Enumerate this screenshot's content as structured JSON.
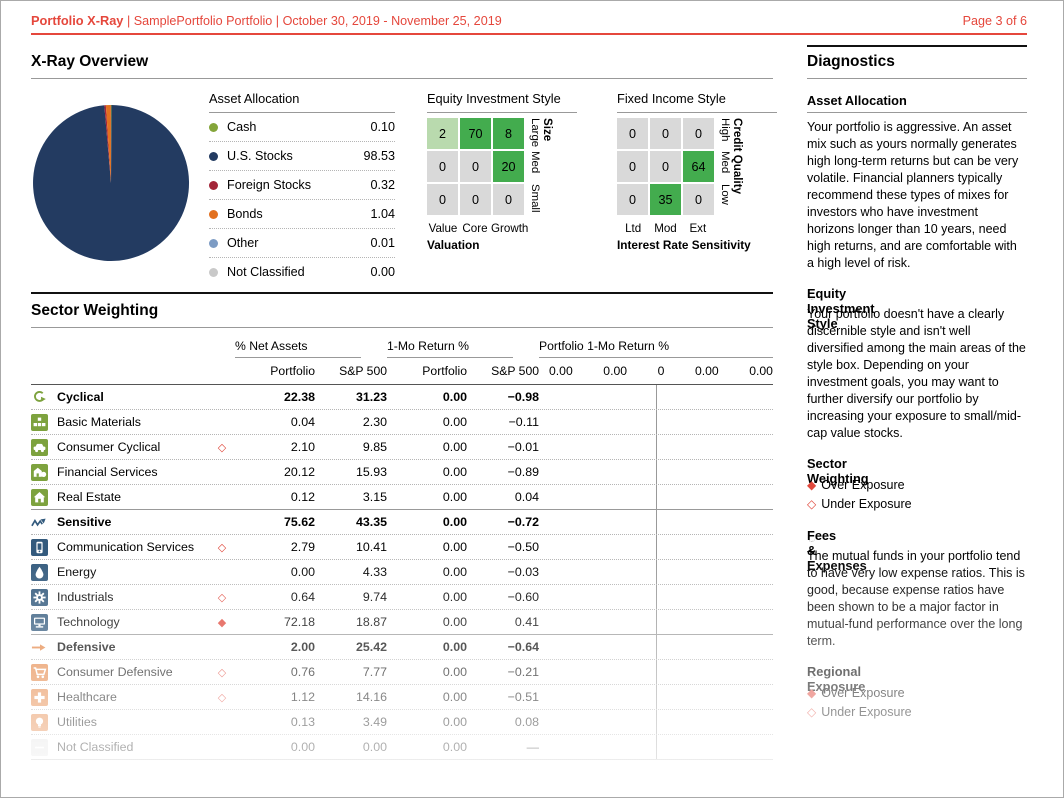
{
  "header": {
    "title": "Portfolio X-Ray",
    "subtitle": "| SamplePortfolio Portfolio | October 30, 2019 - November 25, 2019",
    "page": "Page 3 of 6"
  },
  "colors": {
    "accent_red": "#e5473c",
    "pie_navy": "#233b61",
    "stylebox_green": "#43ac4e",
    "stylebox_light_green": "#b9daae",
    "stylebox_gray": "#d9d9d9",
    "sector_green": "#7da23e",
    "sector_navy": "#335a7d",
    "sector_orange": "#e4823f",
    "diamond_red": "#e0493d"
  },
  "xray_overview": {
    "title": "X-Ray Overview",
    "asset_allocation": {
      "title": "Asset Allocation",
      "items": [
        {
          "label": "Cash",
          "value": "0.10",
          "color": "#84a53a",
          "icon": "legend-dot"
        },
        {
          "label": "U.S. Stocks",
          "value": "98.53",
          "color": "#233b61",
          "icon": "legend-dot"
        },
        {
          "label": "Foreign Stocks",
          "value": "0.32",
          "color": "#a32639",
          "icon": "legend-dot"
        },
        {
          "label": "Bonds",
          "value": "1.04",
          "color": "#e2701f",
          "icon": "legend-dot"
        },
        {
          "label": "Other",
          "value": "0.01",
          "color": "#7d9cc4",
          "icon": "legend-dot"
        },
        {
          "label": "Not Classified",
          "value": "0.00",
          "color": "#c9c9c9",
          "icon": "legend-dot"
        }
      ]
    },
    "equity_style": {
      "title": "Equity Investment Style",
      "cells": [
        {
          "value": "2",
          "tone": "light"
        },
        {
          "value": "70",
          "tone": "full"
        },
        {
          "value": "8",
          "tone": "full"
        },
        {
          "value": "0",
          "tone": "gray"
        },
        {
          "value": "0",
          "tone": "gray"
        },
        {
          "value": "20",
          "tone": "full"
        },
        {
          "value": "0",
          "tone": "gray"
        },
        {
          "value": "0",
          "tone": "gray"
        },
        {
          "value": "0",
          "tone": "gray"
        }
      ],
      "col_labels": [
        "Value",
        "Core",
        "Growth"
      ],
      "row_labels": [
        "Large",
        "Med",
        "Small"
      ],
      "x_axis": "Valuation",
      "y_axis": "Size"
    },
    "fixed_income_style": {
      "title": "Fixed Income Style",
      "cells": [
        {
          "value": "0",
          "tone": "gray"
        },
        {
          "value": "0",
          "tone": "gray"
        },
        {
          "value": "0",
          "tone": "gray"
        },
        {
          "value": "0",
          "tone": "gray"
        },
        {
          "value": "0",
          "tone": "gray"
        },
        {
          "value": "64",
          "tone": "full"
        },
        {
          "value": "0",
          "tone": "gray"
        },
        {
          "value": "35",
          "tone": "full"
        },
        {
          "value": "0",
          "tone": "gray"
        }
      ],
      "col_labels": [
        "Ltd",
        "Mod",
        "Ext"
      ],
      "row_labels": [
        "High",
        "Med",
        "Low"
      ],
      "x_axis": "Interest Rate Sensitivity",
      "y_axis": "Credit Quality"
    }
  },
  "chart_data": {
    "type": "pie",
    "title": "Asset Allocation",
    "categories": [
      "Cash",
      "U.S. Stocks",
      "Foreign Stocks",
      "Bonds",
      "Other",
      "Not Classified"
    ],
    "values": [
      0.1,
      98.53,
      0.32,
      1.04,
      0.01,
      0.0
    ],
    "colors": [
      "#84a53a",
      "#233b61",
      "#a32639",
      "#e2701f",
      "#7d9cc4",
      "#c9c9c9"
    ]
  },
  "sector_weighting": {
    "title": "Sector Weighting",
    "col_groups": [
      "% Net Assets",
      "1-Mo Return %",
      "Portfolio 1-Mo Return %"
    ],
    "subheaders": [
      "Portfolio",
      "S&P 500",
      "Portfolio",
      "S&P 500"
    ],
    "axis_ticks": [
      "0.00",
      "0.00",
      "0",
      "0.00",
      "0.00"
    ],
    "rows": [
      {
        "name": "Cyclical",
        "type": "group",
        "icon": "cyclical-icon",
        "diamond": "",
        "values": [
          "22.38",
          "31.23",
          "0.00",
          "−0.98"
        ]
      },
      {
        "name": "Basic Materials",
        "icon": "basic-materials-icon",
        "diamond": "",
        "values": [
          "0.04",
          "2.30",
          "0.00",
          "−0.11"
        ]
      },
      {
        "name": "Consumer Cyclical",
        "icon": "consumer-cyclical-icon",
        "diamond": "under",
        "values": [
          "2.10",
          "9.85",
          "0.00",
          "−0.01"
        ]
      },
      {
        "name": "Financial Services",
        "icon": "financial-services-icon",
        "diamond": "",
        "values": [
          "20.12",
          "15.93",
          "0.00",
          "−0.89"
        ]
      },
      {
        "name": "Real Estate",
        "icon": "real-estate-icon",
        "diamond": "",
        "values": [
          "0.12",
          "3.15",
          "0.00",
          "0.04"
        ]
      },
      {
        "name": "Sensitive",
        "type": "group",
        "icon": "sensitive-icon",
        "diamond": "",
        "values": [
          "75.62",
          "43.35",
          "0.00",
          "−0.72"
        ]
      },
      {
        "name": "Communication Services",
        "icon": "communication-services-icon",
        "diamond": "under",
        "values": [
          "2.79",
          "10.41",
          "0.00",
          "−0.50"
        ]
      },
      {
        "name": "Energy",
        "icon": "energy-icon",
        "diamond": "",
        "values": [
          "0.00",
          "4.33",
          "0.00",
          "−0.03"
        ]
      },
      {
        "name": "Industrials",
        "icon": "industrials-icon",
        "diamond": "under",
        "values": [
          "0.64",
          "9.74",
          "0.00",
          "−0.60"
        ]
      },
      {
        "name": "Technology",
        "icon": "technology-icon",
        "diamond": "over",
        "values": [
          "72.18",
          "18.87",
          "0.00",
          "0.41"
        ]
      },
      {
        "name": "Defensive",
        "type": "group",
        "icon": "defensive-icon",
        "diamond": "",
        "values": [
          "2.00",
          "25.42",
          "0.00",
          "−0.64"
        ]
      },
      {
        "name": "Consumer Defensive",
        "icon": "consumer-defensive-icon",
        "diamond": "under",
        "values": [
          "0.76",
          "7.77",
          "0.00",
          "−0.21"
        ]
      },
      {
        "name": "Healthcare",
        "icon": "healthcare-icon",
        "diamond": "under",
        "values": [
          "1.12",
          "14.16",
          "0.00",
          "−0.51"
        ]
      },
      {
        "name": "Utilities",
        "icon": "utilities-icon",
        "diamond": "",
        "values": [
          "0.13",
          "3.49",
          "0.00",
          "0.08"
        ]
      },
      {
        "name": "Not Classified",
        "icon": "not-classified-icon",
        "diamond": "",
        "values": [
          "0.00",
          "0.00",
          "0.00",
          "—"
        ]
      }
    ]
  },
  "diagnostics": {
    "title": "Diagnostics",
    "sections": [
      {
        "heading": "Asset Allocation",
        "body": "Your portfolio is aggressive.  An asset mix such as yours normally generates high long-term returns but can be very volatile.  Financial planners typically recommend these types of mixes for investors who have investment horizons longer than 10 years, need high returns, and are comfortable with a high level of risk."
      },
      {
        "heading": "Equity Investment Style",
        "body": "Your portfolio doesn't have a clearly discernible style and isn't well diversified among the main areas of the style box.  Depending on your investment goals, you may want to further diversify our portfolio by increasing your exposure to small/mid-cap value stocks."
      },
      {
        "heading": "Sector Weighting",
        "legend": {
          "over": "Over Exposure",
          "under": "Under Exposure"
        }
      },
      {
        "heading": "Fees & Expenses",
        "body": "The mutual funds in your portfolio tend to have very low expense ratios.  This is good, because expense ratios have been shown to be a major factor in mutual-fund performance over the long term."
      },
      {
        "heading": "Regional Exposure",
        "legend": {
          "over": "Over Exposure",
          "under": "Under Exposure"
        }
      }
    ]
  }
}
